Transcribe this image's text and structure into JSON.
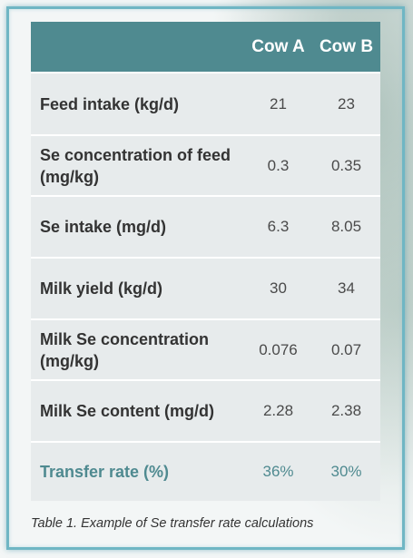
{
  "table": {
    "columns": [
      "Cow A",
      "Cow B"
    ],
    "rows": [
      {
        "label": "Feed intake (kg/d)",
        "values": [
          "21",
          "23"
        ]
      },
      {
        "label": "Se concentration of feed (mg/kg)",
        "values": [
          "0.3",
          "0.35"
        ]
      },
      {
        "label": "Se intake (mg/d)",
        "values": [
          "6.3",
          "8.05"
        ]
      },
      {
        "label": "Milk yield (kg/d)",
        "values": [
          "30",
          "34"
        ]
      },
      {
        "label": "Milk Se concentration (mg/kg)",
        "values": [
          "0.076",
          "0.07"
        ]
      },
      {
        "label": "Milk Se content (mg/d)",
        "values": [
          "2.28",
          "2.38"
        ]
      },
      {
        "label": "Transfer rate (%)",
        "values": [
          "36%",
          "30%"
        ]
      }
    ],
    "caption": "Table 1. Example of Se transfer rate calculations"
  },
  "colors": {
    "header_bg": "#4f8a90",
    "row_bg": "#e7ebec",
    "highlight_text": "#4f8a90",
    "frame": "#6fb6c4"
  }
}
